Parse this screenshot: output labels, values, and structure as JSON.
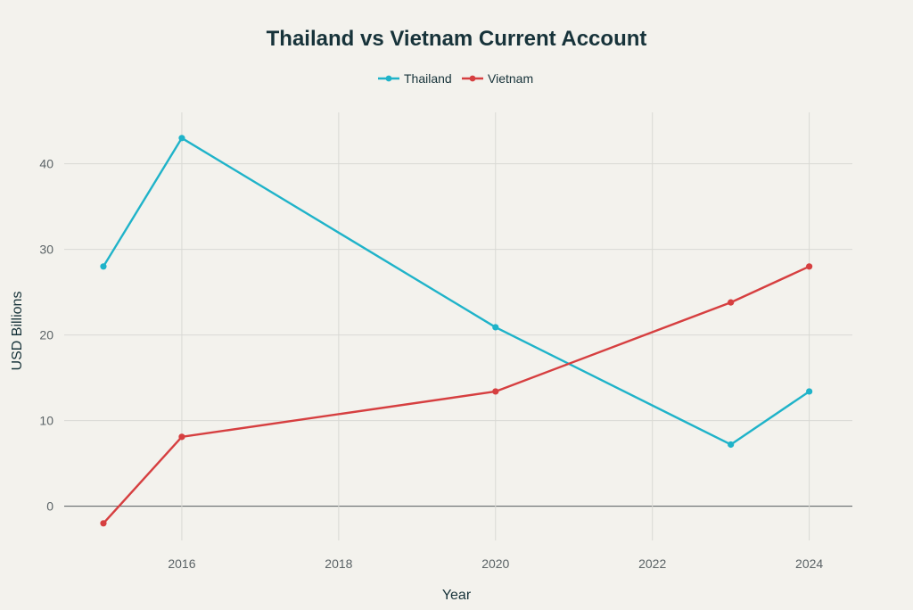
{
  "chart_data": {
    "type": "line",
    "title": "Thailand vs Vietnam Current Account",
    "xlabel": "Year",
    "ylabel": "USD Billions",
    "x": [
      2015,
      2016,
      2020,
      2023,
      2024
    ],
    "xlim": [
      2014.5,
      2024.55
    ],
    "ylim": [
      -4,
      46
    ],
    "x_ticks": [
      2016,
      2018,
      2020,
      2022,
      2024
    ],
    "y_ticks": [
      0,
      10,
      20,
      30,
      40
    ],
    "grid": true,
    "legend_position": "top-center",
    "series": [
      {
        "name": "Thailand",
        "color": "#1fb3c9",
        "values": [
          28.0,
          43.0,
          20.9,
          7.2,
          13.4
        ]
      },
      {
        "name": "Vietnam",
        "color": "#d63f40",
        "values": [
          -2.0,
          8.1,
          13.4,
          23.8,
          28.0
        ]
      }
    ]
  }
}
